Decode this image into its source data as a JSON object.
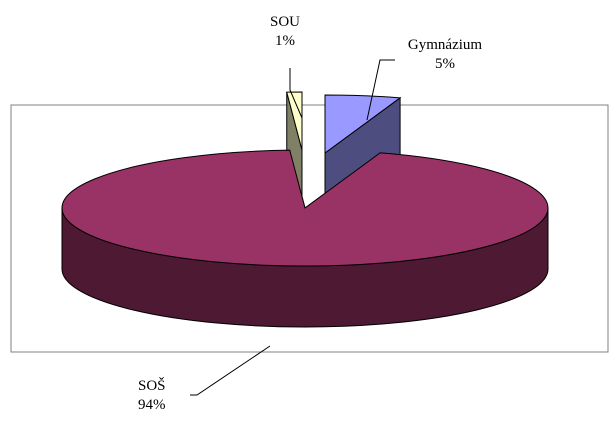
{
  "chart_data": {
    "type": "pie",
    "style": "3d-exploded",
    "slices": [
      {
        "name": "Gymnázium",
        "value": 5,
        "label": "5%",
        "color": "#9999ff",
        "side_color": "#4d4d80"
      },
      {
        "name": "SOŠ",
        "value": 94,
        "label": "94%",
        "color": "#993366",
        "side_color": "#4d1933"
      },
      {
        "name": "SOU",
        "value": 1,
        "label": "1%",
        "color": "#ffffcc",
        "side_color": "#808066"
      }
    ],
    "title": "",
    "legend": "none",
    "plot_area_border": true,
    "plot_area_border_color": "#808080"
  }
}
